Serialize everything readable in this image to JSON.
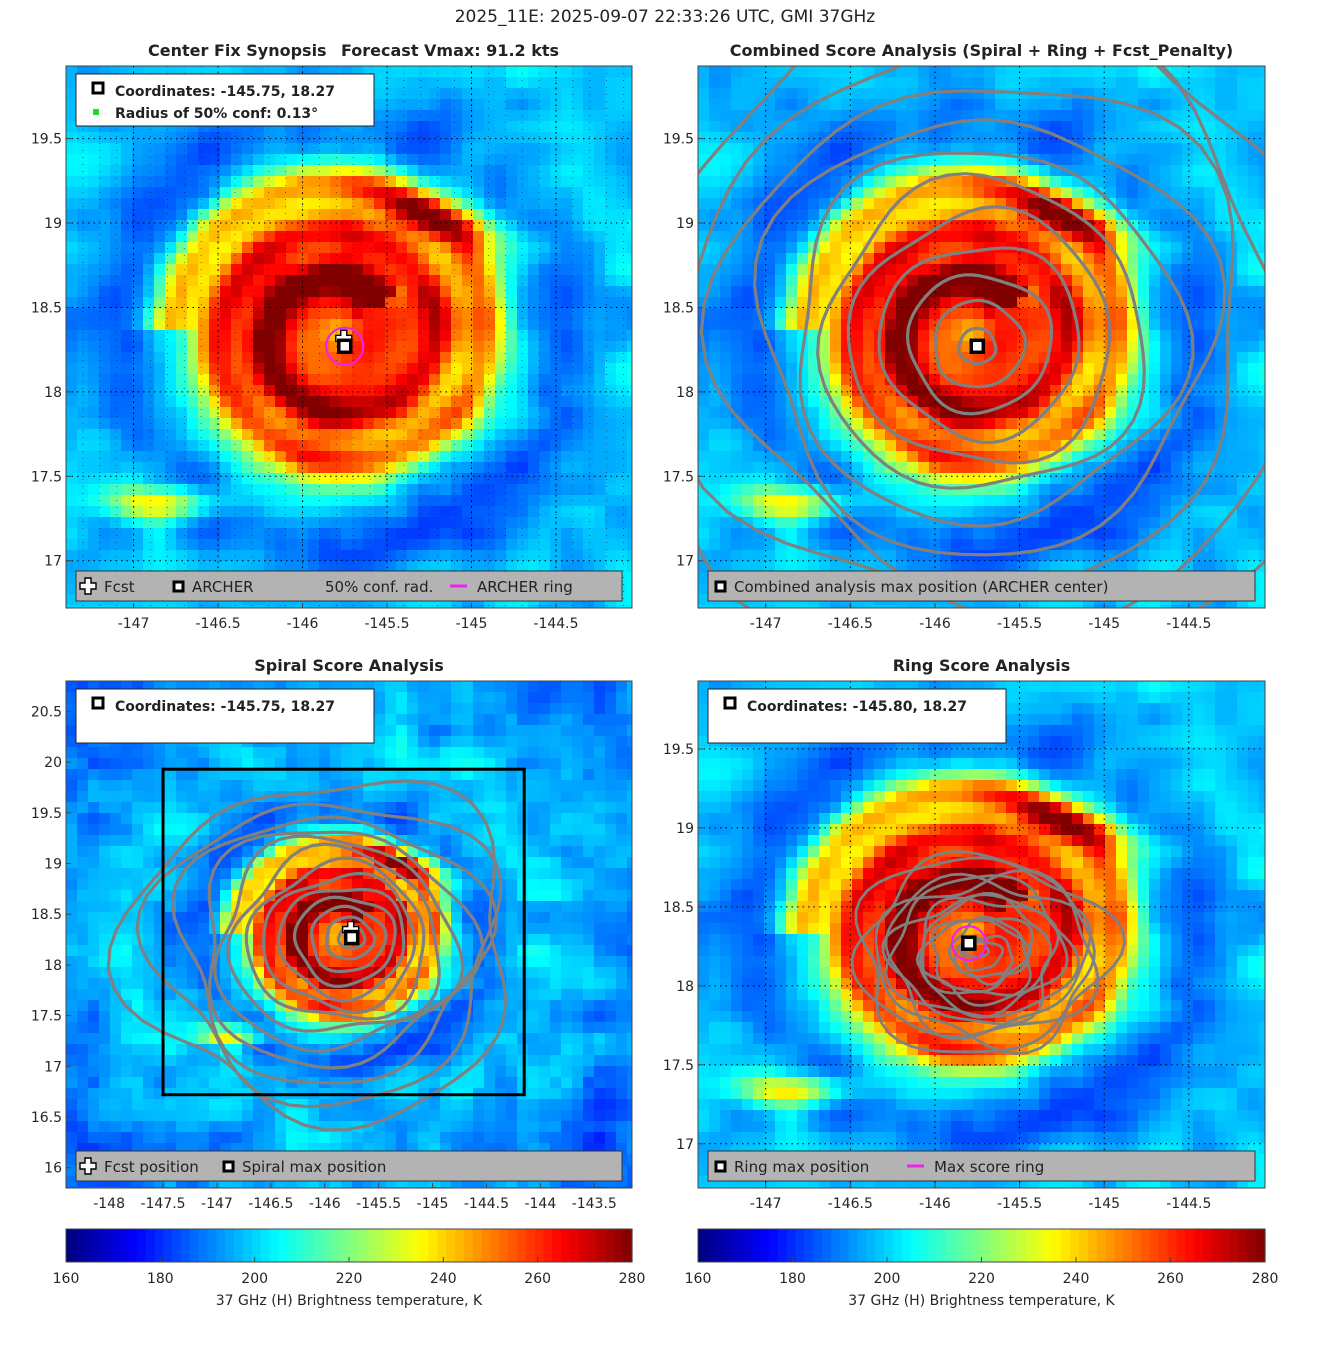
{
  "suptitle": "2025_11E: 2025-09-07 22:33:26 UTC, GMI 37GHz",
  "colors": {
    "fcst_marker": "#ffffff",
    "archer_marker": "#000000",
    "conf_dot": "#22dd22",
    "archer_ring": "#ee22ee",
    "contour": "#808080",
    "legend_bg": "#b3b3b3",
    "box": "#000000"
  },
  "chart_data": [
    {
      "id": "p1",
      "type": "heatmap",
      "title_left": "Center Fix Synopsis",
      "title_right": "Forecast Vmax: 91.2 kts",
      "xlim": [
        -147.4,
        -144.05
      ],
      "ylim": [
        16.72,
        19.93
      ],
      "xticks": [
        -147,
        -146.5,
        -146,
        -145.5,
        -145,
        -144.5
      ],
      "yticks": [
        17,
        17.5,
        18,
        18.5,
        19,
        19.5
      ],
      "grid": "dotted",
      "center": [
        -145.75,
        18.27
      ],
      "storm": {
        "x": -145.78,
        "y": 18.34,
        "spiral": true
      },
      "info_box": {
        "line1": "Coordinates: -145.75, 18.27",
        "line2": "Radius of 50% conf: 0.13°"
      },
      "legend": [
        {
          "label": "Fcst",
          "marker": "cross"
        },
        {
          "label": "ARCHER",
          "marker": "square"
        },
        {
          "label": "50% conf. rad.",
          "marker": "dot"
        },
        {
          "label": "ARCHER ring",
          "marker": "line"
        }
      ],
      "ring_radius": 0.11
    },
    {
      "id": "p2",
      "type": "heatmap",
      "title": "Combined Score Analysis (Spiral + Ring + Fcst_Penalty)",
      "xlim": [
        -147.4,
        -144.05
      ],
      "ylim": [
        16.72,
        19.93
      ],
      "xticks": [
        -147,
        -146.5,
        -146,
        -145.5,
        -145,
        -144.5
      ],
      "yticks": [
        17,
        17.5,
        18,
        18.5,
        19,
        19.5
      ],
      "grid": "dotted",
      "center": [
        -145.75,
        18.27
      ],
      "storm": {
        "x": -145.78,
        "y": 18.34,
        "spiral": true
      },
      "contours": "concentric",
      "legend": [
        {
          "label": "Combined analysis max position (ARCHER center)",
          "marker": "square"
        }
      ]
    },
    {
      "id": "p3",
      "type": "heatmap",
      "title": "Spiral Score Analysis",
      "xlim": [
        -148.4,
        -143.15
      ],
      "ylim": [
        15.8,
        20.8
      ],
      "xticks": [
        -148,
        -147.5,
        -147,
        -146.5,
        -146,
        -145.5,
        -145,
        -144.5,
        -144,
        -143.5
      ],
      "yticks": [
        16,
        16.5,
        17,
        17.5,
        18,
        18.5,
        19,
        19.5,
        20,
        20.5
      ],
      "grid": "none",
      "center": [
        -145.75,
        18.27
      ],
      "storm": {
        "x": -145.85,
        "y": 18.3,
        "spiral": true
      },
      "contours": "spiral-dense",
      "box": {
        "x0": -147.5,
        "x1": -144.15,
        "y0": 16.72,
        "y1": 19.93
      },
      "info_box": {
        "line1": "Coordinates: -145.75, 18.27"
      },
      "legend": [
        {
          "label": "Fcst position",
          "marker": "cross"
        },
        {
          "label": "Spiral max position",
          "marker": "square"
        }
      ]
    },
    {
      "id": "p4",
      "type": "heatmap",
      "title": "Ring Score Analysis",
      "xlim": [
        -147.4,
        -144.05
      ],
      "ylim": [
        16.72,
        19.93
      ],
      "xticks": [
        -147,
        -146.5,
        -146,
        -145.5,
        -145,
        -144.5
      ],
      "yticks": [
        17,
        17.5,
        18,
        18.5,
        19,
        19.5
      ],
      "grid": "dotted",
      "center": [
        -145.8,
        18.27
      ],
      "storm": {
        "x": -145.78,
        "y": 18.34,
        "spiral": true
      },
      "contours": "irregular",
      "info_box": {
        "line1": "Coordinates: -145.80, 18.27"
      },
      "legend": [
        {
          "label": "Ring max position",
          "marker": "square"
        },
        {
          "label": "Max score ring",
          "marker": "line"
        }
      ],
      "ring_radius": 0.1
    }
  ],
  "colorbars": [
    {
      "id": "cb1",
      "min": 160,
      "max": 280,
      "ticks": [
        160,
        180,
        200,
        220,
        240,
        260,
        280
      ],
      "label": "37 GHz (H) Brightness temperature, K"
    },
    {
      "id": "cb2",
      "min": 160,
      "max": 280,
      "ticks": [
        160,
        180,
        200,
        220,
        240,
        260,
        280
      ],
      "label": "37 GHz (H) Brightness temperature, K"
    }
  ]
}
